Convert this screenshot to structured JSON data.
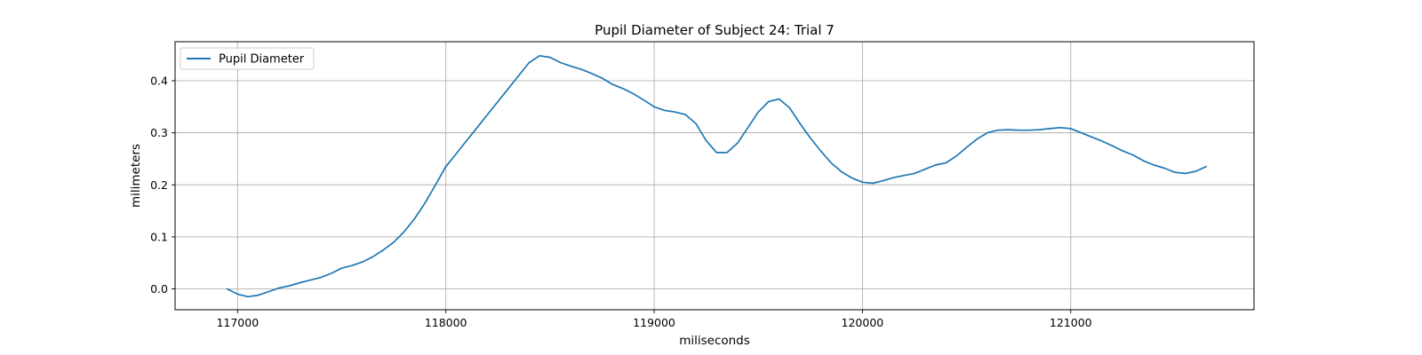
{
  "chart_data": {
    "type": "line",
    "title": "Pupil Diameter of Subject 24: Trial 7",
    "xlabel": "miliseconds",
    "ylabel": "milimeters",
    "xlim": [
      116700,
      121880
    ],
    "ylim": [
      -0.04,
      0.475
    ],
    "xticks": [
      117000,
      118000,
      119000,
      120000,
      121000
    ],
    "yticks": [
      0.0,
      0.1,
      0.2,
      0.3,
      0.4
    ],
    "ytick_labels": [
      "0.0",
      "0.1",
      "0.2",
      "0.3",
      "0.4"
    ],
    "grid": true,
    "legend": {
      "placement": "upper-left"
    },
    "series": [
      {
        "name": "Pupil Diameter",
        "color": "#1f77b4",
        "points": [
          [
            116950,
            0.0
          ],
          [
            117000,
            -0.01
          ],
          [
            117050,
            -0.015
          ],
          [
            117100,
            -0.012
          ],
          [
            117150,
            -0.005
          ],
          [
            117200,
            0.002
          ],
          [
            117250,
            0.006
          ],
          [
            117300,
            0.012
          ],
          [
            117350,
            0.017
          ],
          [
            117400,
            0.022
          ],
          [
            117450,
            0.03
          ],
          [
            117500,
            0.04
          ],
          [
            117550,
            0.045
          ],
          [
            117600,
            0.052
          ],
          [
            117650,
            0.062
          ],
          [
            117700,
            0.075
          ],
          [
            117750,
            0.09
          ],
          [
            117800,
            0.11
          ],
          [
            117850,
            0.135
          ],
          [
            117900,
            0.165
          ],
          [
            117950,
            0.2
          ],
          [
            118000,
            0.235
          ],
          [
            118050,
            0.26
          ],
          [
            118100,
            0.285
          ],
          [
            118150,
            0.31
          ],
          [
            118200,
            0.335
          ],
          [
            118250,
            0.36
          ],
          [
            118300,
            0.385
          ],
          [
            118350,
            0.41
          ],
          [
            118400,
            0.435
          ],
          [
            118450,
            0.448
          ],
          [
            118500,
            0.445
          ],
          [
            118550,
            0.435
          ],
          [
            118600,
            0.428
          ],
          [
            118650,
            0.422
          ],
          [
            118700,
            0.414
          ],
          [
            118750,
            0.405
          ],
          [
            118800,
            0.393
          ],
          [
            118850,
            0.385
          ],
          [
            118900,
            0.375
          ],
          [
            118950,
            0.363
          ],
          [
            119000,
            0.35
          ],
          [
            119050,
            0.343
          ],
          [
            119100,
            0.34
          ],
          [
            119150,
            0.335
          ],
          [
            119200,
            0.318
          ],
          [
            119250,
            0.285
          ],
          [
            119300,
            0.262
          ],
          [
            119350,
            0.262
          ],
          [
            119400,
            0.28
          ],
          [
            119450,
            0.31
          ],
          [
            119500,
            0.34
          ],
          [
            119550,
            0.36
          ],
          [
            119600,
            0.365
          ],
          [
            119650,
            0.348
          ],
          [
            119700,
            0.318
          ],
          [
            119750,
            0.29
          ],
          [
            119800,
            0.265
          ],
          [
            119850,
            0.242
          ],
          [
            119900,
            0.225
          ],
          [
            119950,
            0.213
          ],
          [
            120000,
            0.205
          ],
          [
            120050,
            0.203
          ],
          [
            120100,
            0.208
          ],
          [
            120150,
            0.214
          ],
          [
            120200,
            0.218
          ],
          [
            120250,
            0.222
          ],
          [
            120300,
            0.23
          ],
          [
            120350,
            0.238
          ],
          [
            120400,
            0.242
          ],
          [
            120450,
            0.255
          ],
          [
            120500,
            0.272
          ],
          [
            120550,
            0.288
          ],
          [
            120600,
            0.3
          ],
          [
            120650,
            0.305
          ],
          [
            120700,
            0.306
          ],
          [
            120750,
            0.305
          ],
          [
            120800,
            0.305
          ],
          [
            120850,
            0.306
          ],
          [
            120900,
            0.308
          ],
          [
            120950,
            0.31
          ],
          [
            121000,
            0.308
          ],
          [
            121050,
            0.3
          ],
          [
            121100,
            0.292
          ],
          [
            121150,
            0.284
          ],
          [
            121200,
            0.275
          ],
          [
            121250,
            0.265
          ],
          [
            121300,
            0.257
          ],
          [
            121350,
            0.246
          ],
          [
            121400,
            0.238
          ],
          [
            121450,
            0.232
          ],
          [
            121500,
            0.224
          ],
          [
            121550,
            0.222
          ],
          [
            121600,
            0.226
          ],
          [
            121650,
            0.235
          ]
        ]
      }
    ]
  }
}
